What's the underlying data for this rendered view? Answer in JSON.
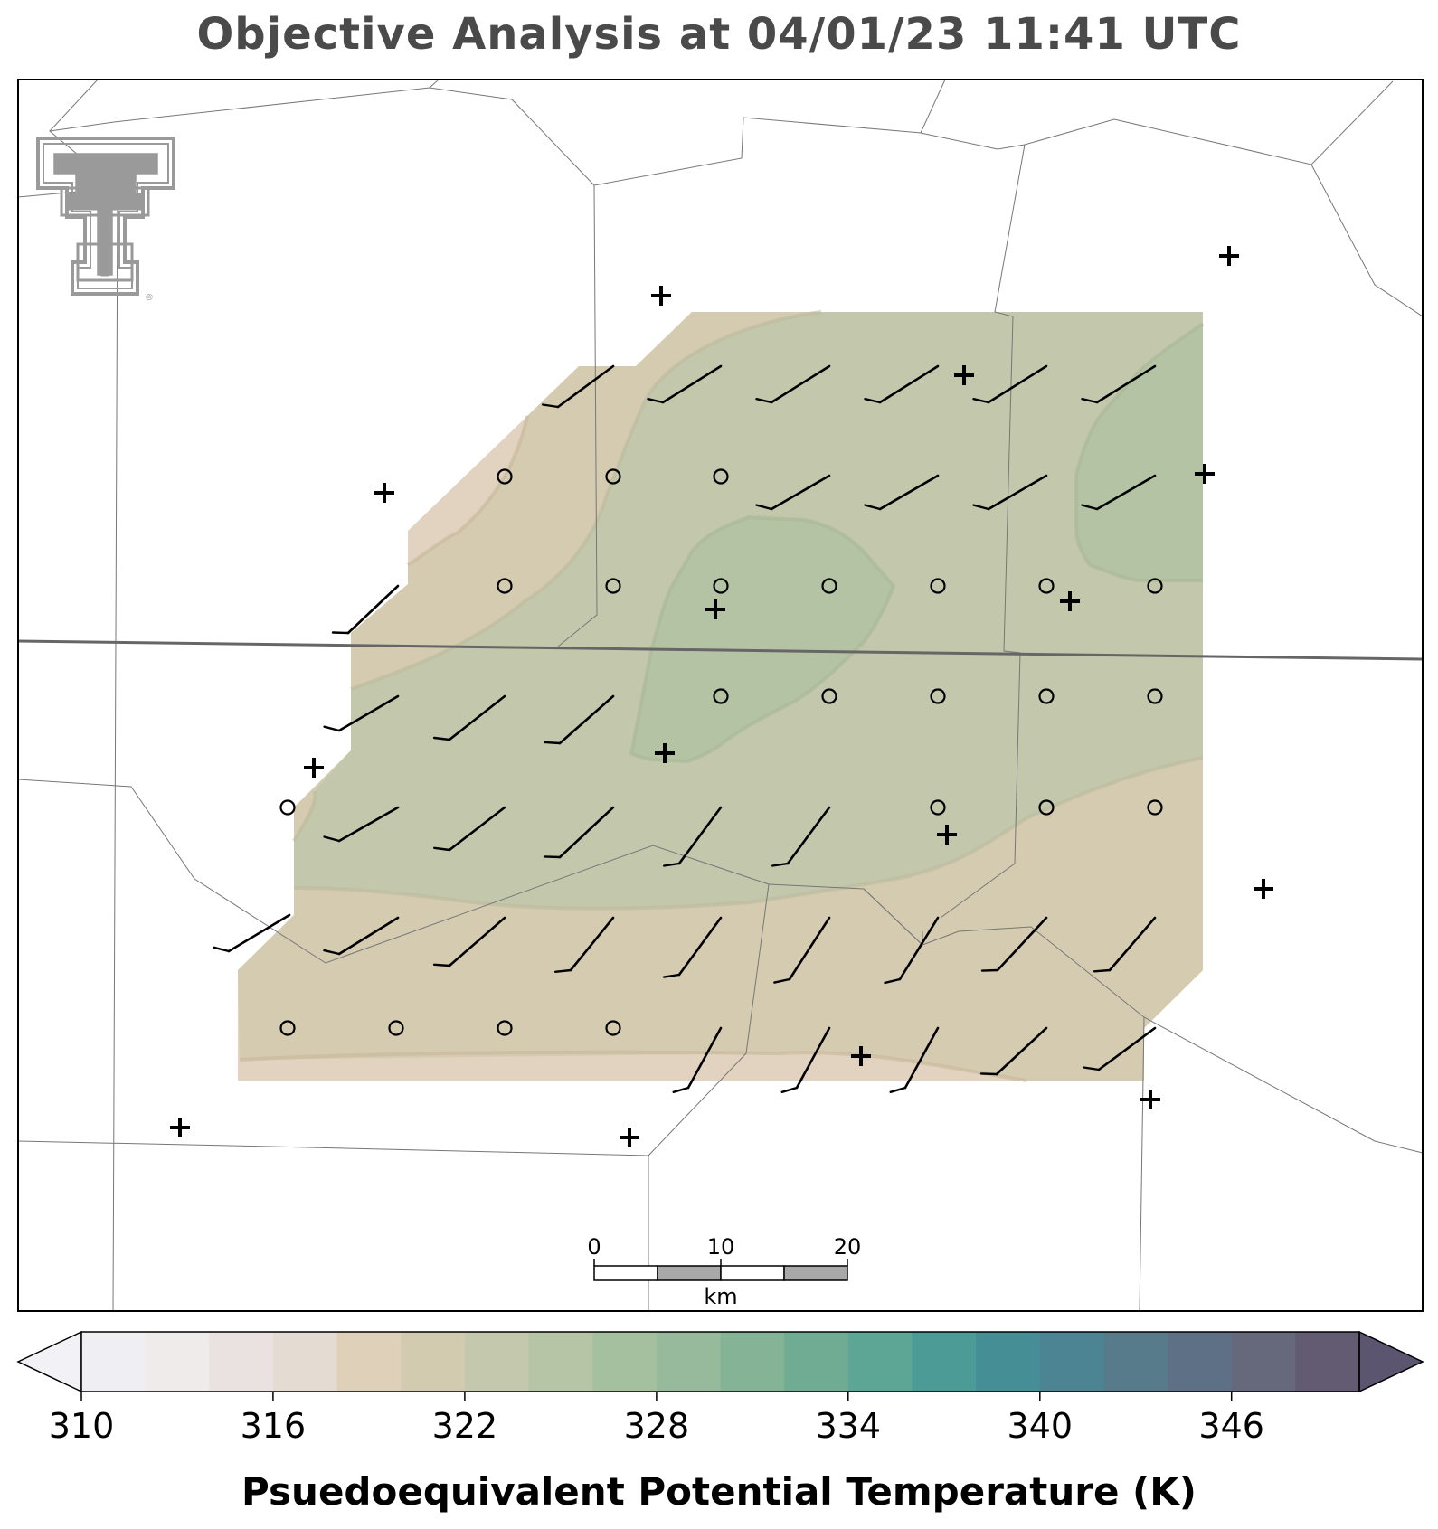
{
  "title": "Objective Analysis at 04/01/23 11:41 UTC",
  "logo": {
    "name": "texas-tech-double-t-logo",
    "text": "TT",
    "registered_mark": "®",
    "color": "#9a9a9a"
  },
  "scale_bar": {
    "ticks": [
      "0",
      "10",
      "20"
    ],
    "unit": "km"
  },
  "colorbar": {
    "title": "Psuedoequivalent Potential Temperature (K)",
    "tick_labels": [
      "310",
      "316",
      "322",
      "328",
      "334",
      "340",
      "346"
    ],
    "min": 310,
    "max": 350,
    "step": 2,
    "extend": "both",
    "colors": [
      "#efeef3",
      "#efebeb",
      "#e9e2e0",
      "#e4dbd2",
      "#dfd0b9",
      "#d2cbb0",
      "#c4c8ad",
      "#b5c5a6",
      "#a5c09f",
      "#97ba9c",
      "#85b396",
      "#6fac93",
      "#5da696",
      "#4c9b97",
      "#468e96",
      "#4d8493",
      "#577b8b",
      "#5e7085",
      "#66687b",
      "#625b72"
    ],
    "under_color": "#f2f1f6",
    "over_color": "#5c5570"
  },
  "contour_fill": {
    "outer_316_318": "#e0d0bd",
    "band_318_320": "#d4cbb0",
    "band_320_322": "#c3c7ac",
    "band_322_324": "#b4c3a3"
  },
  "station_symbols": [
    "wind-barb-icon",
    "calm-circle-icon",
    "station-plus-icon"
  ]
}
